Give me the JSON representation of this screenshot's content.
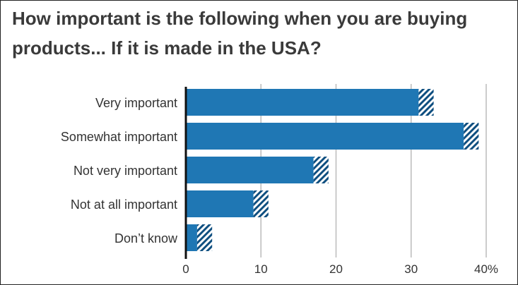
{
  "header": {
    "title_line1": "How important is the following when you are buying",
    "title_line2": "products... If it is made in the USA?"
  },
  "chart_data": {
    "type": "bar",
    "orientation": "horizontal",
    "title": "How important is the following when you are buying products... If it is made in the USA?",
    "categories": [
      "Very important",
      "Somewhat important",
      "Not very important",
      "Not at all important",
      "Don’t know"
    ],
    "values": [
      32,
      38,
      18,
      10,
      2.5
    ],
    "error_margin": [
      1.0,
      1.0,
      1.0,
      1.0,
      1.0
    ],
    "x_ticks": [
      0,
      10,
      20,
      30,
      40
    ],
    "x_tick_labels": [
      "0",
      "10",
      "20",
      "30",
      "40%"
    ],
    "xlim": [
      0,
      40
    ],
    "grid": true,
    "legend": "none",
    "colors": {
      "bar": "#1f77b4",
      "bar_dark": "#0f4f80",
      "grid": "#bbbbbb",
      "axis": "#111111"
    }
  }
}
